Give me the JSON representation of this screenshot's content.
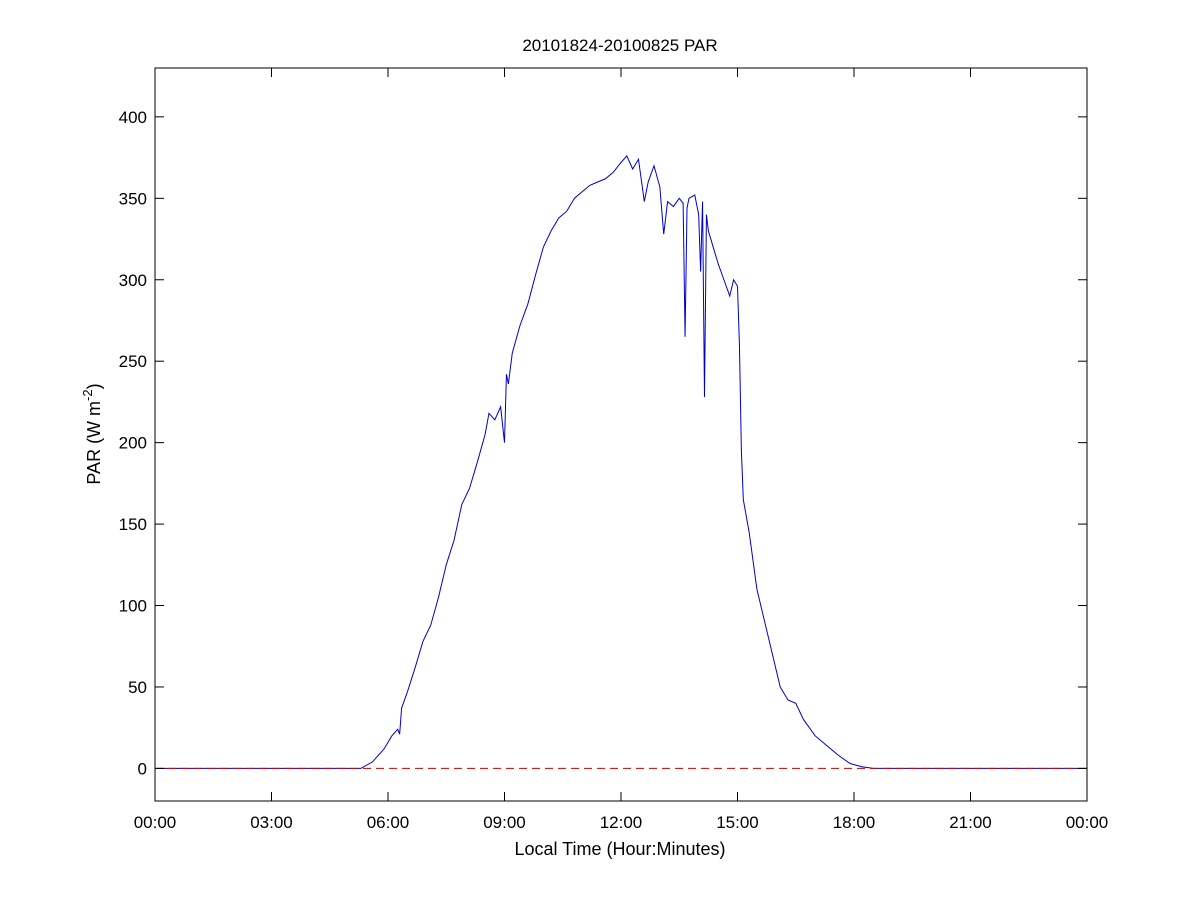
{
  "chart_data": {
    "type": "line",
    "title": "20101824-20100825 PAR",
    "xlabel": "Local Time (Hour:Minutes)",
    "ylabel_main": "PAR (W m",
    "ylabel_sup": "-2",
    "ylabel_close": ")",
    "xlim": [
      0,
      24
    ],
    "ylim": [
      -20,
      430
    ],
    "x_unit": "hours",
    "x_ticks": [
      0,
      3,
      6,
      9,
      12,
      15,
      18,
      21,
      24
    ],
    "x_tick_labels": [
      "00:00",
      "03:00",
      "06:00",
      "09:00",
      "12:00",
      "15:00",
      "18:00",
      "21:00",
      "00:00"
    ],
    "y_ticks": [
      0,
      50,
      100,
      150,
      200,
      250,
      300,
      350,
      400
    ],
    "y_tick_labels": [
      "0",
      "50",
      "100",
      "150",
      "200",
      "250",
      "300",
      "350",
      "400"
    ],
    "grid": false,
    "series": [
      {
        "style": "solid",
        "color": "#0000cc",
        "x": [
          0,
          5.3,
          5.6,
          5.9,
          6.1,
          6.25,
          6.3,
          6.35,
          6.5,
          6.7,
          6.9,
          7.1,
          7.3,
          7.5,
          7.7,
          7.9,
          8.1,
          8.3,
          8.5,
          8.6,
          8.75,
          8.9,
          9.0,
          9.05,
          9.1,
          9.2,
          9.4,
          9.6,
          9.8,
          10.0,
          10.2,
          10.4,
          10.6,
          10.8,
          11.0,
          11.2,
          11.4,
          11.6,
          11.8,
          12.0,
          12.15,
          12.3,
          12.45,
          12.6,
          12.7,
          12.85,
          13.0,
          13.1,
          13.2,
          13.35,
          13.5,
          13.6,
          13.65,
          13.7,
          13.75,
          13.9,
          14.0,
          14.05,
          14.1,
          14.15,
          14.2,
          14.25,
          14.35,
          14.5,
          14.65,
          14.8,
          14.9,
          15.0,
          15.05,
          15.1,
          15.15,
          15.3,
          15.5,
          15.7,
          15.9,
          16.1,
          16.3,
          16.5,
          16.7,
          17.0,
          17.3,
          17.6,
          17.9,
          18.2,
          18.5,
          18.8,
          24
        ],
        "y": [
          0,
          0,
          4,
          12,
          20,
          24,
          21,
          37,
          47,
          62,
          78,
          88,
          105,
          125,
          140,
          162,
          172,
          188,
          205,
          218,
          214,
          222,
          200,
          242,
          236,
          255,
          272,
          285,
          303,
          320,
          330,
          338,
          342,
          350,
          354,
          358,
          360,
          362,
          366,
          372,
          376,
          368,
          374,
          348,
          360,
          370,
          357,
          328,
          348,
          345,
          350,
          347,
          265,
          344,
          350,
          352,
          340,
          305,
          348,
          228,
          340,
          330,
          322,
          310,
          300,
          290,
          300,
          296,
          260,
          195,
          165,
          145,
          110,
          90,
          70,
          50,
          42,
          40,
          30,
          20,
          14,
          8,
          3,
          1,
          0,
          0,
          0
        ]
      },
      {
        "style": "dashed",
        "color": "#cc0000",
        "x": [
          0,
          24
        ],
        "y": [
          0,
          0
        ]
      }
    ]
  }
}
